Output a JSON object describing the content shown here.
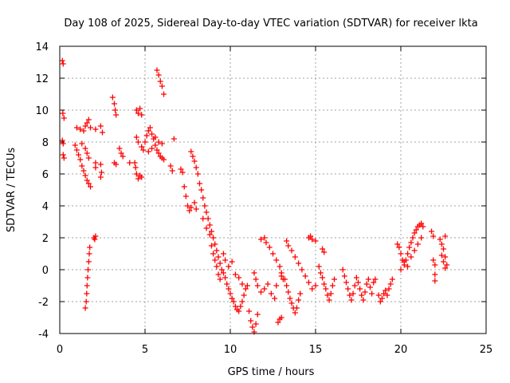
{
  "chart_data": {
    "type": "scatter",
    "title": "Day 108 of 2025, Sidereal Day-to-day VTEC variation (SDTVAR) for receiver lkta",
    "xlabel": "GPS time / hours",
    "ylabel": "SDTVAR / TECUs",
    "xlim": [
      0,
      25
    ],
    "ylim": [
      -4,
      14
    ],
    "xticks": [
      0,
      5,
      10,
      15,
      20,
      25
    ],
    "yticks": [
      -4,
      -2,
      0,
      2,
      4,
      6,
      8,
      10,
      12,
      14
    ],
    "grid": true,
    "marker": "+",
    "color": "#ff0000",
    "series": [
      {
        "name": "SDTVAR",
        "points": [
          [
            0.15,
            13.1
          ],
          [
            0.2,
            12.9
          ],
          [
            0.18,
            9.8
          ],
          [
            0.25,
            9.5
          ],
          [
            0.15,
            8.1
          ],
          [
            0.2,
            7.9
          ],
          [
            0.2,
            7.2
          ],
          [
            0.25,
            7.0
          ],
          [
            1.0,
            8.9
          ],
          [
            1.2,
            8.8
          ],
          [
            1.4,
            8.7
          ],
          [
            1.5,
            9.0
          ],
          [
            1.6,
            9.2
          ],
          [
            1.7,
            9.4
          ],
          [
            1.8,
            8.9
          ],
          [
            2.1,
            8.8
          ],
          [
            2.4,
            9.0
          ],
          [
            2.5,
            8.6
          ],
          [
            0.9,
            7.8
          ],
          [
            1.0,
            7.5
          ],
          [
            1.1,
            7.2
          ],
          [
            1.2,
            6.9
          ],
          [
            1.3,
            6.5
          ],
          [
            1.4,
            6.2
          ],
          [
            1.5,
            5.9
          ],
          [
            1.6,
            5.6
          ],
          [
            1.7,
            5.4
          ],
          [
            1.8,
            5.2
          ],
          [
            1.3,
            7.9
          ],
          [
            1.5,
            7.6
          ],
          [
            1.6,
            7.3
          ],
          [
            1.7,
            7.0
          ],
          [
            1.5,
            -2.4
          ],
          [
            1.55,
            -2.0
          ],
          [
            1.58,
            -1.5
          ],
          [
            1.6,
            -1.0
          ],
          [
            1.63,
            -0.5
          ],
          [
            1.66,
            0.0
          ],
          [
            1.7,
            0.5
          ],
          [
            1.73,
            1.0
          ],
          [
            1.76,
            1.4
          ],
          [
            2.0,
            2.0
          ],
          [
            2.1,
            2.1
          ],
          [
            2.05,
            1.9
          ],
          [
            2.1,
            6.7
          ],
          [
            2.1,
            6.4
          ],
          [
            2.4,
            6.6
          ],
          [
            2.45,
            6.1
          ],
          [
            2.4,
            5.8
          ],
          [
            3.1,
            10.8
          ],
          [
            3.2,
            10.4
          ],
          [
            3.25,
            10.0
          ],
          [
            3.3,
            9.7
          ],
          [
            3.2,
            6.7
          ],
          [
            3.3,
            6.6
          ],
          [
            3.5,
            7.6
          ],
          [
            3.6,
            7.3
          ],
          [
            3.7,
            7.1
          ],
          [
            4.1,
            6.7
          ],
          [
            4.4,
            6.7
          ],
          [
            4.45,
            6.4
          ],
          [
            4.5,
            10.0
          ],
          [
            4.6,
            9.8
          ],
          [
            4.7,
            10.1
          ],
          [
            4.8,
            9.7
          ],
          [
            4.5,
            8.3
          ],
          [
            4.6,
            8.0
          ],
          [
            4.8,
            7.7
          ],
          [
            4.9,
            7.5
          ],
          [
            4.5,
            6.0
          ],
          [
            4.6,
            5.7
          ],
          [
            4.7,
            5.9
          ],
          [
            4.8,
            5.8
          ],
          [
            5.0,
            8.0
          ],
          [
            5.1,
            8.4
          ],
          [
            5.2,
            8.7
          ],
          [
            5.3,
            8.9
          ],
          [
            5.4,
            8.5
          ],
          [
            5.5,
            8.2
          ],
          [
            5.6,
            7.8
          ],
          [
            5.7,
            7.5
          ],
          [
            5.8,
            7.3
          ],
          [
            5.9,
            7.1
          ],
          [
            6.0,
            7.0
          ],
          [
            6.1,
            6.9
          ],
          [
            5.2,
            7.4
          ],
          [
            5.4,
            7.6
          ],
          [
            5.6,
            8.3
          ],
          [
            5.8,
            8.0
          ],
          [
            6.0,
            7.9
          ],
          [
            5.7,
            12.5
          ],
          [
            5.8,
            12.2
          ],
          [
            5.9,
            11.8
          ],
          [
            6.0,
            11.5
          ],
          [
            6.1,
            11.0
          ],
          [
            6.5,
            6.5
          ],
          [
            6.6,
            6.2
          ],
          [
            6.7,
            8.2
          ],
          [
            7.1,
            6.3
          ],
          [
            7.2,
            6.1
          ],
          [
            7.7,
            7.4
          ],
          [
            7.8,
            7.1
          ],
          [
            7.9,
            6.8
          ],
          [
            8.0,
            6.4
          ],
          [
            8.1,
            6.0
          ],
          [
            8.2,
            5.4
          ],
          [
            8.3,
            5.0
          ],
          [
            8.4,
            4.5
          ],
          [
            8.5,
            4.0
          ],
          [
            8.6,
            3.6
          ],
          [
            8.7,
            3.2
          ],
          [
            8.8,
            2.8
          ],
          [
            8.9,
            2.4
          ],
          [
            9.0,
            2.0
          ],
          [
            9.1,
            1.6
          ],
          [
            9.2,
            1.2
          ],
          [
            9.3,
            0.8
          ],
          [
            9.4,
            0.4
          ],
          [
            9.5,
            0.0
          ],
          [
            7.3,
            5.2
          ],
          [
            7.4,
            4.6
          ],
          [
            7.5,
            4.0
          ],
          [
            7.6,
            3.7
          ],
          [
            7.7,
            3.9
          ],
          [
            7.9,
            4.2
          ],
          [
            8.0,
            3.8
          ],
          [
            8.4,
            3.2
          ],
          [
            8.6,
            2.6
          ],
          [
            8.8,
            2.2
          ],
          [
            8.9,
            1.5
          ],
          [
            9.0,
            1.0
          ],
          [
            9.1,
            0.6
          ],
          [
            9.2,
            0.2
          ],
          [
            9.3,
            -0.3
          ],
          [
            9.4,
            -0.6
          ],
          [
            9.6,
            -0.2
          ],
          [
            9.7,
            -0.5
          ],
          [
            9.8,
            -0.9
          ],
          [
            9.9,
            -1.2
          ],
          [
            10.0,
            -1.5
          ],
          [
            10.1,
            -1.8
          ],
          [
            10.2,
            -2.0
          ],
          [
            10.3,
            -2.3
          ],
          [
            10.4,
            -2.5
          ],
          [
            10.5,
            -2.6
          ],
          [
            10.6,
            -2.3
          ],
          [
            10.7,
            -2.0
          ],
          [
            10.8,
            -1.6
          ],
          [
            9.6,
            1.0
          ],
          [
            9.7,
            0.6
          ],
          [
            9.9,
            0.2
          ],
          [
            10.1,
            0.5
          ],
          [
            10.3,
            -0.3
          ],
          [
            10.5,
            -0.5
          ],
          [
            10.7,
            -0.9
          ],
          [
            10.9,
            -1.2
          ],
          [
            11.0,
            -1.0
          ],
          [
            11.1,
            -2.6
          ],
          [
            11.2,
            -3.2
          ],
          [
            11.3,
            -3.6
          ],
          [
            11.4,
            -3.9
          ],
          [
            11.5,
            -3.4
          ],
          [
            11.6,
            -2.8
          ],
          [
            11.4,
            -0.2
          ],
          [
            11.5,
            -0.6
          ],
          [
            11.6,
            -1.0
          ],
          [
            11.8,
            -1.4
          ],
          [
            12.0,
            -1.2
          ],
          [
            12.2,
            -0.9
          ],
          [
            12.4,
            -1.5
          ],
          [
            12.6,
            -1.8
          ],
          [
            12.7,
            -1.0
          ],
          [
            11.8,
            1.9
          ],
          [
            12.0,
            2.0
          ],
          [
            12.1,
            1.7
          ],
          [
            12.3,
            1.4
          ],
          [
            12.5,
            1.0
          ],
          [
            12.7,
            0.6
          ],
          [
            12.9,
            0.2
          ],
          [
            13.0,
            -0.2
          ],
          [
            13.1,
            -0.6
          ],
          [
            12.8,
            -3.3
          ],
          [
            12.9,
            -3.1
          ],
          [
            13.0,
            -3.0
          ],
          [
            13.0,
            -0.4
          ],
          [
            13.2,
            -0.6
          ],
          [
            13.3,
            -1.0
          ],
          [
            13.4,
            -1.4
          ],
          [
            13.5,
            -1.8
          ],
          [
            13.6,
            -2.1
          ],
          [
            13.7,
            -2.4
          ],
          [
            13.8,
            -2.7
          ],
          [
            13.9,
            -2.4
          ],
          [
            14.0,
            -1.9
          ],
          [
            14.1,
            -1.5
          ],
          [
            13.3,
            1.8
          ],
          [
            13.4,
            1.5
          ],
          [
            13.6,
            1.2
          ],
          [
            13.8,
            0.8
          ],
          [
            14.0,
            0.4
          ],
          [
            14.2,
            0.0
          ],
          [
            14.4,
            -0.4
          ],
          [
            14.6,
            -0.8
          ],
          [
            14.8,
            -1.2
          ],
          [
            15.0,
            -1.0
          ],
          [
            14.6,
            2.0
          ],
          [
            14.7,
            2.1
          ],
          [
            14.8,
            1.9
          ],
          [
            15.0,
            1.8
          ],
          [
            15.4,
            1.3
          ],
          [
            15.5,
            1.1
          ],
          [
            15.2,
            0.2
          ],
          [
            15.3,
            -0.2
          ],
          [
            15.4,
            -0.5
          ],
          [
            15.5,
            -0.9
          ],
          [
            15.6,
            -1.2
          ],
          [
            15.7,
            -1.6
          ],
          [
            15.8,
            -1.9
          ],
          [
            15.9,
            -1.5
          ],
          [
            16.0,
            -1.0
          ],
          [
            16.1,
            -0.6
          ],
          [
            16.6,
            0.0
          ],
          [
            16.7,
            -0.4
          ],
          [
            16.8,
            -0.8
          ],
          [
            16.9,
            -1.2
          ],
          [
            17.0,
            -1.6
          ],
          [
            17.1,
            -1.9
          ],
          [
            17.2,
            -1.5
          ],
          [
            17.3,
            -1.0
          ],
          [
            17.4,
            -0.5
          ],
          [
            17.5,
            -0.8
          ],
          [
            17.6,
            -1.2
          ],
          [
            17.7,
            -1.6
          ],
          [
            17.8,
            -1.9
          ],
          [
            17.9,
            -1.4
          ],
          [
            18.0,
            -0.9
          ],
          [
            18.1,
            -0.6
          ],
          [
            18.2,
            -1.1
          ],
          [
            18.3,
            -1.5
          ],
          [
            18.4,
            -0.8
          ],
          [
            18.5,
            -0.6
          ],
          [
            18.7,
            -1.6
          ],
          [
            18.8,
            -2.0
          ],
          [
            18.9,
            -1.8
          ],
          [
            19.0,
            -1.5
          ],
          [
            19.1,
            -1.3
          ],
          [
            19.2,
            -1.6
          ],
          [
            19.3,
            -1.2
          ],
          [
            19.4,
            -0.9
          ],
          [
            19.5,
            -0.6
          ],
          [
            19.8,
            1.6
          ],
          [
            19.9,
            1.4
          ],
          [
            20.0,
            1.0
          ],
          [
            20.1,
            0.6
          ],
          [
            20.2,
            0.3
          ],
          [
            20.3,
            0.6
          ],
          [
            20.4,
            1.0
          ],
          [
            20.5,
            1.4
          ],
          [
            20.6,
            1.7
          ],
          [
            20.7,
            2.0
          ],
          [
            20.8,
            2.3
          ],
          [
            20.9,
            2.5
          ],
          [
            21.0,
            2.7
          ],
          [
            21.1,
            2.8
          ],
          [
            21.2,
            2.9
          ],
          [
            21.3,
            2.7
          ],
          [
            20.0,
            0.0
          ],
          [
            20.2,
            0.5
          ],
          [
            20.4,
            0.2
          ],
          [
            20.6,
            0.8
          ],
          [
            20.8,
            1.2
          ],
          [
            21.0,
            1.6
          ],
          [
            21.2,
            2.0
          ],
          [
            21.8,
            2.4
          ],
          [
            21.9,
            2.1
          ],
          [
            21.9,
            0.6
          ],
          [
            22.0,
            0.3
          ],
          [
            22.0,
            -0.3
          ],
          [
            22.0,
            -0.7
          ],
          [
            22.3,
            1.9
          ],
          [
            22.4,
            1.6
          ],
          [
            22.5,
            1.3
          ],
          [
            22.6,
            2.1
          ],
          [
            22.4,
            0.9
          ],
          [
            22.5,
            0.5
          ],
          [
            22.6,
            0.1
          ],
          [
            22.7,
            0.3
          ],
          [
            22.6,
            0.8
          ]
        ]
      }
    ]
  }
}
